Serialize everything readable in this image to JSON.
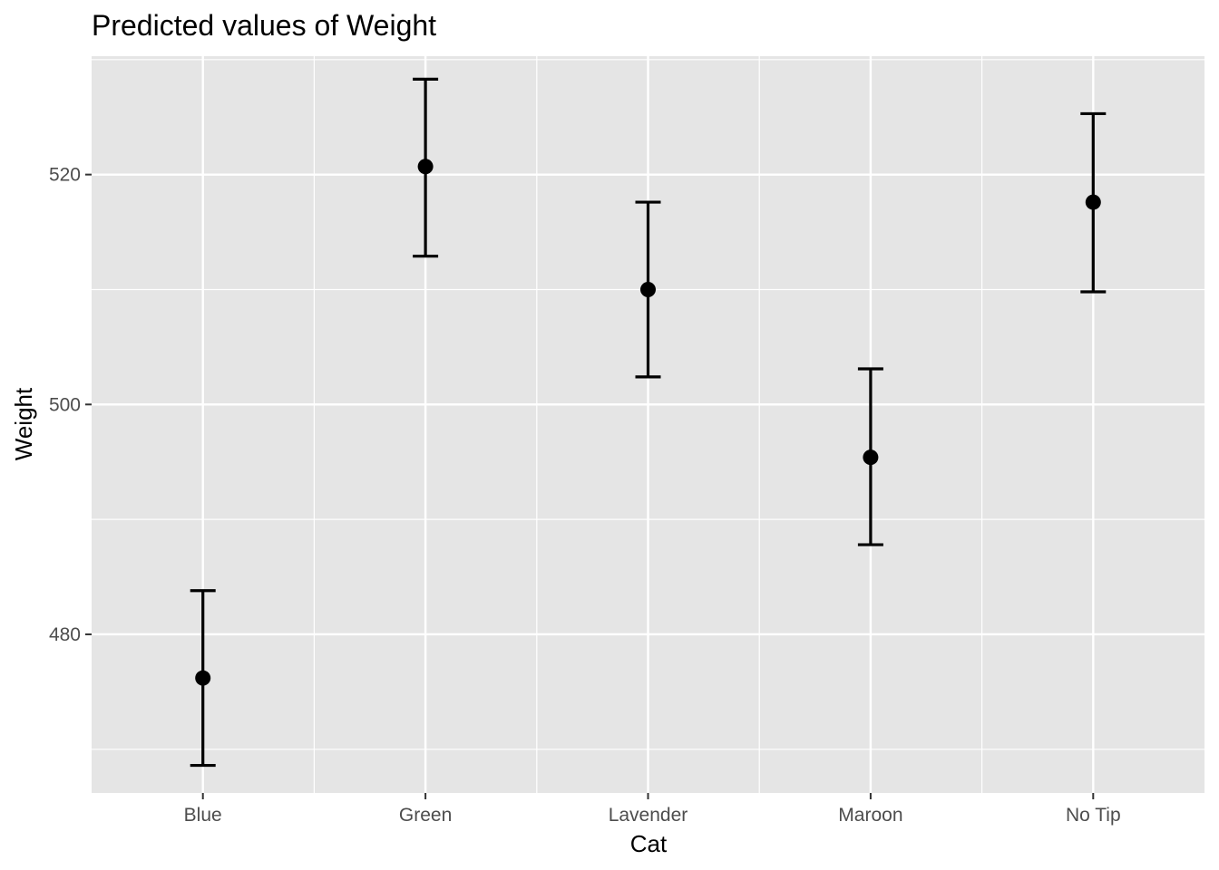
{
  "chart_data": {
    "type": "errorbar",
    "title": "Predicted values of Weight",
    "xlabel": "Cat",
    "ylabel": "Weight",
    "categories": [
      "Blue",
      "Green",
      "Lavender",
      "Maroon",
      "No Tip"
    ],
    "values": [
      476.2,
      520.7,
      510.0,
      495.4,
      517.6
    ],
    "lower": [
      468.6,
      512.9,
      502.4,
      487.8,
      509.8
    ],
    "upper": [
      483.8,
      528.3,
      517.6,
      503.1,
      525.3
    ],
    "ylim": [
      466.2,
      530.3
    ],
    "yticks": [
      480,
      500,
      520
    ],
    "grid": true,
    "colors": {
      "panel": "#e5e5e5",
      "grid": "#ffffff",
      "marks": "#000000"
    }
  }
}
